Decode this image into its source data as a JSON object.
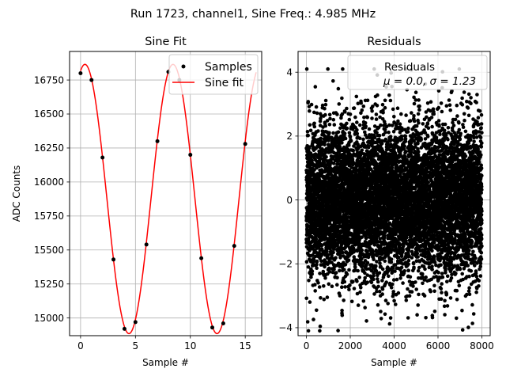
{
  "suptitle": "Run 1723, channel1, Sine Freq.: 4.985 MHz",
  "chart_data": [
    {
      "type": "line",
      "title": "Sine Fit",
      "xlabel": "Sample #",
      "ylabel": "ADC Counts",
      "xlim": [
        -1,
        16.5
      ],
      "ylim": [
        14870,
        16960
      ],
      "xticks": [
        0,
        5,
        10,
        15
      ],
      "yticks": [
        15000,
        15250,
        15500,
        15750,
        16000,
        16250,
        16500,
        16750
      ],
      "xtick_labels": [
        "0",
        "5",
        "10",
        "15"
      ],
      "ytick_labels": [
        "15000",
        "15250",
        "15500",
        "15750",
        "16000",
        "16250",
        "16500",
        "16750"
      ],
      "grid": true,
      "legend_position": "top-right",
      "series": [
        {
          "name": "Samples",
          "kind": "scatter",
          "color": "#000000",
          "x": [
            0,
            1,
            2,
            3,
            4,
            5,
            6,
            7,
            8,
            9,
            10,
            11,
            12,
            13,
            14,
            15
          ],
          "y": [
            16800,
            16750,
            16180,
            15430,
            14920,
            14970,
            15540,
            16300,
            16810,
            16750,
            16200,
            15440,
            14930,
            14960,
            15530,
            16280
          ]
        },
        {
          "name": "Sine fit",
          "kind": "line",
          "color": "#ff0000",
          "model": {
            "mean": 15875,
            "amplitude": 990,
            "period": 8.02,
            "peak_at": 0.4,
            "x_start": 0,
            "x_end": 16
          }
        }
      ]
    },
    {
      "type": "scatter",
      "title": "Residuals",
      "xlabel": "Sample #",
      "ylabel": "",
      "xlim": [
        -380,
        8380
      ],
      "ylim": [
        -4.25,
        4.65
      ],
      "xticks": [
        0,
        2000,
        4000,
        6000,
        8000
      ],
      "yticks": [
        -4,
        -2,
        0,
        2,
        4
      ],
      "xtick_labels": [
        "0",
        "2000",
        "4000",
        "6000",
        "8000"
      ],
      "ytick_labels": [
        "−4",
        "−2",
        "0",
        "2",
        "4"
      ],
      "grid": true,
      "legend_position": "top-right",
      "legend_title": "Residuals",
      "legend_stats": "μ = 0.0, σ = 1.23",
      "series": [
        {
          "name": "Residuals",
          "color": "#000000",
          "n_points": 8000,
          "x_range": [
            0,
            7999
          ],
          "mean": 0.0,
          "std": 1.23,
          "clip": 4.1
        }
      ]
    }
  ]
}
